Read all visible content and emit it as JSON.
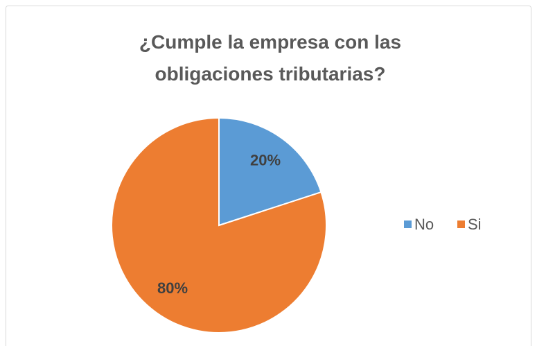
{
  "chart_data": {
    "type": "pie",
    "title": "¿Cumple la empresa con las obligaciones tributarias?",
    "categories": [
      "No",
      "Si"
    ],
    "values": [
      20,
      80
    ],
    "value_labels": [
      "20%",
      "80%"
    ],
    "colors": [
      "#5b9bd5",
      "#ed7d31"
    ],
    "legend": "right"
  }
}
